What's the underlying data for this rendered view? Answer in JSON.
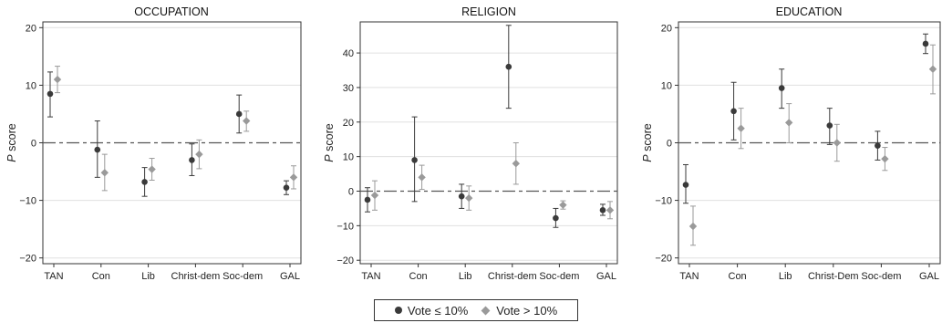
{
  "colors": {
    "low": "#3a3a3a",
    "high": "#9a9a9a",
    "zero_line": "#555555",
    "grid": "#e0e0e0"
  },
  "legend": {
    "low_label": "Vote ≤ 10%",
    "high_label": "Vote > 10%",
    "placement": "bottom-center"
  },
  "chart_data": [
    {
      "type": "scatter",
      "title": "OCCUPATION",
      "ylabel": "P score",
      "categories": [
        "TAN",
        "Con",
        "Lib",
        "Christ-dem",
        "Soc-dem",
        "GAL"
      ],
      "ylim": [
        -21,
        21
      ],
      "yticks": [
        -20,
        -10,
        0,
        10,
        20
      ],
      "grid": true,
      "series": [
        {
          "name": "Vote ≤ 10%",
          "marker": "circle",
          "values": [
            8.5,
            -1.2,
            -6.8,
            -3.0,
            5.0,
            -7.8
          ],
          "lower": [
            4.5,
            -6.0,
            -9.3,
            -5.7,
            1.7,
            -9.0
          ],
          "upper": [
            12.3,
            3.8,
            -4.3,
            -0.2,
            8.3,
            -6.6
          ]
        },
        {
          "name": "Vote > 10%",
          "marker": "diamond",
          "values": [
            11.0,
            -5.2,
            -4.6,
            -2.0,
            3.8,
            -6.0
          ],
          "lower": [
            8.7,
            -8.3,
            -6.5,
            -4.5,
            2.0,
            -8.0
          ],
          "upper": [
            13.3,
            -2.0,
            -2.7,
            0.5,
            5.5,
            -4.0
          ]
        }
      ]
    },
    {
      "type": "scatter",
      "title": "RELIGION",
      "ylabel": "P score",
      "categories": [
        "TAN",
        "Con",
        "Lib",
        "Christ-dem",
        "Soc-dem",
        "GAL"
      ],
      "ylim": [
        -21,
        49
      ],
      "yticks": [
        -20,
        -10,
        0,
        10,
        20,
        30,
        40
      ],
      "grid": true,
      "series": [
        {
          "name": "Vote ≤ 10%",
          "marker": "circle",
          "values": [
            -2.5,
            9.0,
            -1.5,
            36.0,
            -7.8,
            -5.5
          ],
          "lower": [
            -6.0,
            -3.0,
            -5.0,
            24.0,
            -10.5,
            -7.0
          ],
          "upper": [
            1.0,
            21.5,
            2.0,
            48.0,
            -5.0,
            -3.8
          ]
        },
        {
          "name": "Vote > 10%",
          "marker": "diamond",
          "values": [
            -1.2,
            4.0,
            -2.0,
            8.0,
            -4.0,
            -5.5
          ],
          "lower": [
            -5.5,
            0.5,
            -5.5,
            2.0,
            -5.2,
            -8.0
          ],
          "upper": [
            3.0,
            7.5,
            1.5,
            14.0,
            -2.8,
            -3.0
          ]
        }
      ]
    },
    {
      "type": "scatter",
      "title": "EDUCATION",
      "ylabel": "P score",
      "categories": [
        "TAN",
        "Con",
        "Lib",
        "Christ-Dem",
        "Soc-dem",
        "GAL"
      ],
      "ylim": [
        -21,
        21
      ],
      "yticks": [
        -20,
        -10,
        0,
        10,
        20
      ],
      "grid": true,
      "series": [
        {
          "name": "Vote ≤ 10%",
          "marker": "circle",
          "values": [
            -7.3,
            5.5,
            9.5,
            3.0,
            -0.5,
            17.2
          ],
          "lower": [
            -10.5,
            0.5,
            6.0,
            -0.3,
            -3.0,
            15.5
          ],
          "upper": [
            -3.8,
            10.5,
            12.8,
            6.0,
            2.0,
            18.9
          ]
        },
        {
          "name": "Vote > 10%",
          "marker": "diamond",
          "values": [
            -14.5,
            2.5,
            3.5,
            0.0,
            -2.8,
            12.8
          ],
          "lower": [
            -17.8,
            -1.0,
            0.0,
            -3.2,
            -4.8,
            8.5
          ],
          "upper": [
            -11.0,
            6.0,
            6.8,
            3.2,
            -0.8,
            17.0
          ]
        }
      ]
    }
  ]
}
